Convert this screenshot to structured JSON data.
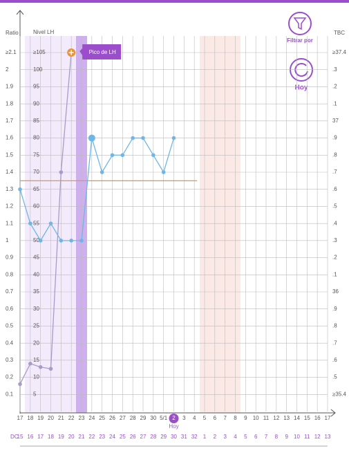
{
  "chart_data": {
    "type": "line",
    "ratio_axis_label": "Ratio",
    "lh_axis_label": "Nivel LH",
    "tbc_axis_label": "TBC",
    "categories": [
      "17",
      "18",
      "19",
      "20",
      "21",
      "22",
      "23",
      "24",
      "25",
      "26",
      "27",
      "28",
      "29",
      "30",
      "5/1",
      "2",
      "3",
      "4",
      "5",
      "6",
      "7",
      "8",
      "9",
      "10",
      "11",
      "12",
      "13",
      "14",
      "15",
      "16",
      "17"
    ],
    "today_index": 15,
    "today_label": "Hoy",
    "cycle_day_label": "DC",
    "cycle_days": [
      15,
      16,
      17,
      18,
      19,
      20,
      21,
      22,
      23,
      24,
      25,
      26,
      27,
      28,
      29,
      30,
      31,
      32,
      1,
      2,
      3,
      4,
      5,
      6,
      7,
      8,
      9,
      10,
      11,
      12,
      13
    ],
    "ylim": [
      0,
      2.1
    ],
    "yticks": [
      {
        "value": 2.1,
        "label": "≥2.1"
      },
      2,
      1.9,
      1.8,
      1.7,
      1.6,
      1.5,
      1.4,
      1.3,
      1.2,
      1.1,
      1,
      0.9,
      0.8,
      0.7,
      0.6,
      0.5,
      0.4,
      0.3,
      0.2,
      0.1
    ],
    "y2lim": [
      0,
      105
    ],
    "y2ticks": [
      {
        "value": 105,
        "label": "≥105"
      },
      100,
      95,
      90,
      85,
      80,
      75,
      70,
      65,
      60,
      55,
      50,
      45,
      40,
      35,
      30,
      25,
      20,
      15,
      10,
      5
    ],
    "y3lim": [
      35.3,
      37.4
    ],
    "y3ticks": [
      {
        "value": 37.4,
        "label": "≥37.4"
      },
      {
        "value": 37.3,
        "label": ".3"
      },
      {
        "value": 37.2,
        "label": ".2"
      },
      {
        "value": 37.1,
        "label": ".1"
      },
      37,
      {
        "value": 36.9,
        "label": ".9"
      },
      {
        "value": 36.8,
        "label": ".8"
      },
      {
        "value": 36.7,
        "label": ".7"
      },
      {
        "value": 36.6,
        "label": ".6"
      },
      {
        "value": 36.5,
        "label": ".5"
      },
      {
        "value": 36.4,
        "label": ".4"
      },
      {
        "value": 36.3,
        "label": ".3"
      },
      {
        "value": 36.2,
        "label": ".2"
      },
      {
        "value": 36.1,
        "label": ".1"
      },
      36,
      {
        "value": 35.9,
        "label": ".9"
      },
      {
        "value": 35.8,
        "label": ".8"
      },
      {
        "value": 35.7,
        "label": ".7"
      },
      {
        "value": 35.6,
        "label": ".6"
      },
      {
        "value": 35.5,
        "label": ".5"
      },
      {
        "value": 35.4,
        "label": "≥35.4"
      }
    ],
    "series": [
      {
        "axis": "y3",
        "color": "#6db6e6",
        "values": [
          36.6,
          36.4,
          36.3,
          36.4,
          36.3,
          36.3,
          36.3,
          36.9,
          36.7,
          36.8,
          36.8,
          36.9,
          36.9,
          36.8,
          36.7,
          36.9,
          null,
          null,
          null,
          null,
          null,
          null,
          null,
          null,
          null,
          null,
          null,
          null,
          null,
          null,
          null
        ]
      },
      {
        "axis": "y2",
        "color": "#a99bc9",
        "values": [
          8,
          14,
          13,
          12.5,
          70,
          105,
          null,
          null,
          null,
          null,
          null,
          null,
          null,
          null,
          null,
          null,
          null,
          null,
          null,
          null,
          null,
          null,
          null,
          null,
          null,
          null,
          null,
          null,
          null,
          null,
          null
        ]
      }
    ],
    "coverline": 36.65,
    "coverline_color": "#e8953a",
    "peak_label": "Pico de LH",
    "peak_index": 5,
    "filter_label": "Filtrar por",
    "today_button_label": "Hoy"
  }
}
